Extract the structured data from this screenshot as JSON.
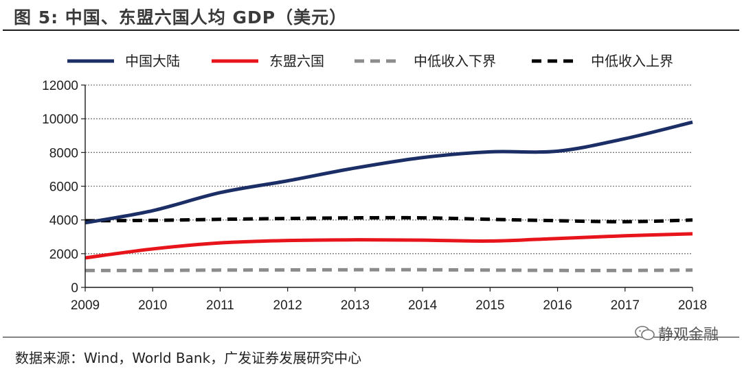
{
  "figure": {
    "title": "图 5:  中国、东盟六国人均 GDP（美元）",
    "source": "数据来源：Wind，World Bank，广发证券发展研究中心",
    "watermark": "静观金融"
  },
  "chart_data": {
    "type": "line",
    "title": "中国、东盟六国人均 GDP（美元）",
    "xlabel": "",
    "ylabel": "",
    "x": [
      2009,
      2010,
      2011,
      2012,
      2013,
      2014,
      2015,
      2016,
      2017,
      2018
    ],
    "ylim": [
      0,
      12000
    ],
    "yticks": [
      0,
      2000,
      4000,
      6000,
      8000,
      10000,
      12000
    ],
    "grid": true,
    "legend_position": "top",
    "series": [
      {
        "name": "中国大陆",
        "color": "#1c2e66",
        "dash": "solid",
        "values": [
          3830,
          4550,
          5620,
          6320,
          7080,
          7700,
          8040,
          8080,
          8820,
          9800
        ]
      },
      {
        "name": "东盟六国",
        "color": "#e8141c",
        "dash": "solid",
        "values": [
          1750,
          2280,
          2640,
          2780,
          2820,
          2800,
          2750,
          2900,
          3060,
          3180
        ]
      },
      {
        "name": "中低收入下界",
        "color": "#8c8c8c",
        "dash": "dashed",
        "values": [
          1000,
          1005,
          1025,
          1035,
          1045,
          1045,
          1025,
          1005,
          1005,
          1025
        ]
      },
      {
        "name": "中低收入上界",
        "color": "#000000",
        "dash": "dashed",
        "values": [
          3950,
          3975,
          4035,
          4085,
          4125,
          4125,
          4035,
          3955,
          3895,
          3995
        ]
      }
    ]
  }
}
